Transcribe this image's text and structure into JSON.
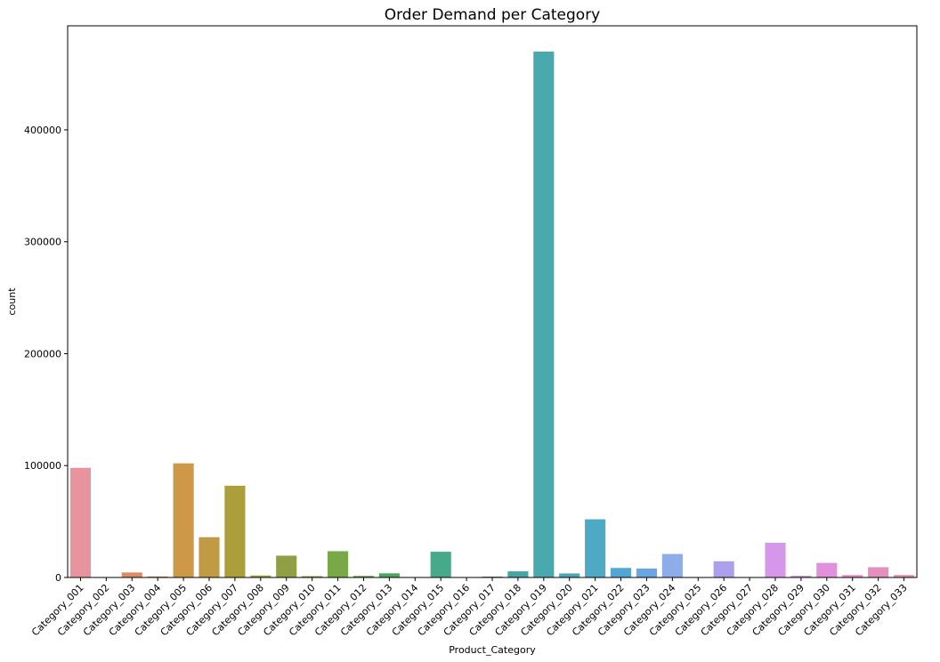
{
  "chart_data": {
    "type": "bar",
    "title": "Order Demand per Category",
    "xlabel": "Product_Category",
    "ylabel": "count",
    "ylim": [
      0,
      493000
    ],
    "yticks": [
      0,
      100000,
      200000,
      300000,
      400000
    ],
    "grid": false,
    "categories": [
      "Category_001",
      "Category_002",
      "Category_003",
      "Category_004",
      "Category_005",
      "Category_006",
      "Category_007",
      "Category_008",
      "Category_009",
      "Category_010",
      "Category_011",
      "Category_012",
      "Category_013",
      "Category_014",
      "Category_015",
      "Category_016",
      "Category_017",
      "Category_018",
      "Category_019",
      "Category_020",
      "Category_021",
      "Category_022",
      "Category_023",
      "Category_024",
      "Category_025",
      "Category_026",
      "Category_027",
      "Category_028",
      "Category_029",
      "Category_030",
      "Category_031",
      "Category_032",
      "Category_033"
    ],
    "values": [
      98000,
      0,
      4500,
      900,
      102000,
      36000,
      82000,
      1800,
      19500,
      1200,
      23500,
      1400,
      3700,
      200,
      23000,
      0,
      800,
      5500,
      470000,
      3600,
      52000,
      8500,
      8000,
      21000,
      0,
      14500,
      0,
      31000,
      1600,
      13000,
      2200,
      9200,
      2200
    ],
    "colors": [
      "#e8949f",
      "#e59aa6",
      "#dc8a68",
      "#d18c5a",
      "#cd9848",
      "#c09a45",
      "#ac9e3b",
      "#9ba63d",
      "#919f44",
      "#86a43f",
      "#79a846",
      "#5fa44a",
      "#4aa660",
      "#48a77c",
      "#48a88a",
      "#46a794",
      "#47a59c",
      "#47a6a5",
      "#4aa9ad",
      "#4ba8b3",
      "#4ea9c4",
      "#53a5d2",
      "#6aa6e2",
      "#8eacea",
      "#a1a4ea",
      "#ae9fec",
      "#c09bed",
      "#d497e9",
      "#d996e0",
      "#e190db",
      "#e38fcb",
      "#e48fbe",
      "#e690b0"
    ]
  }
}
